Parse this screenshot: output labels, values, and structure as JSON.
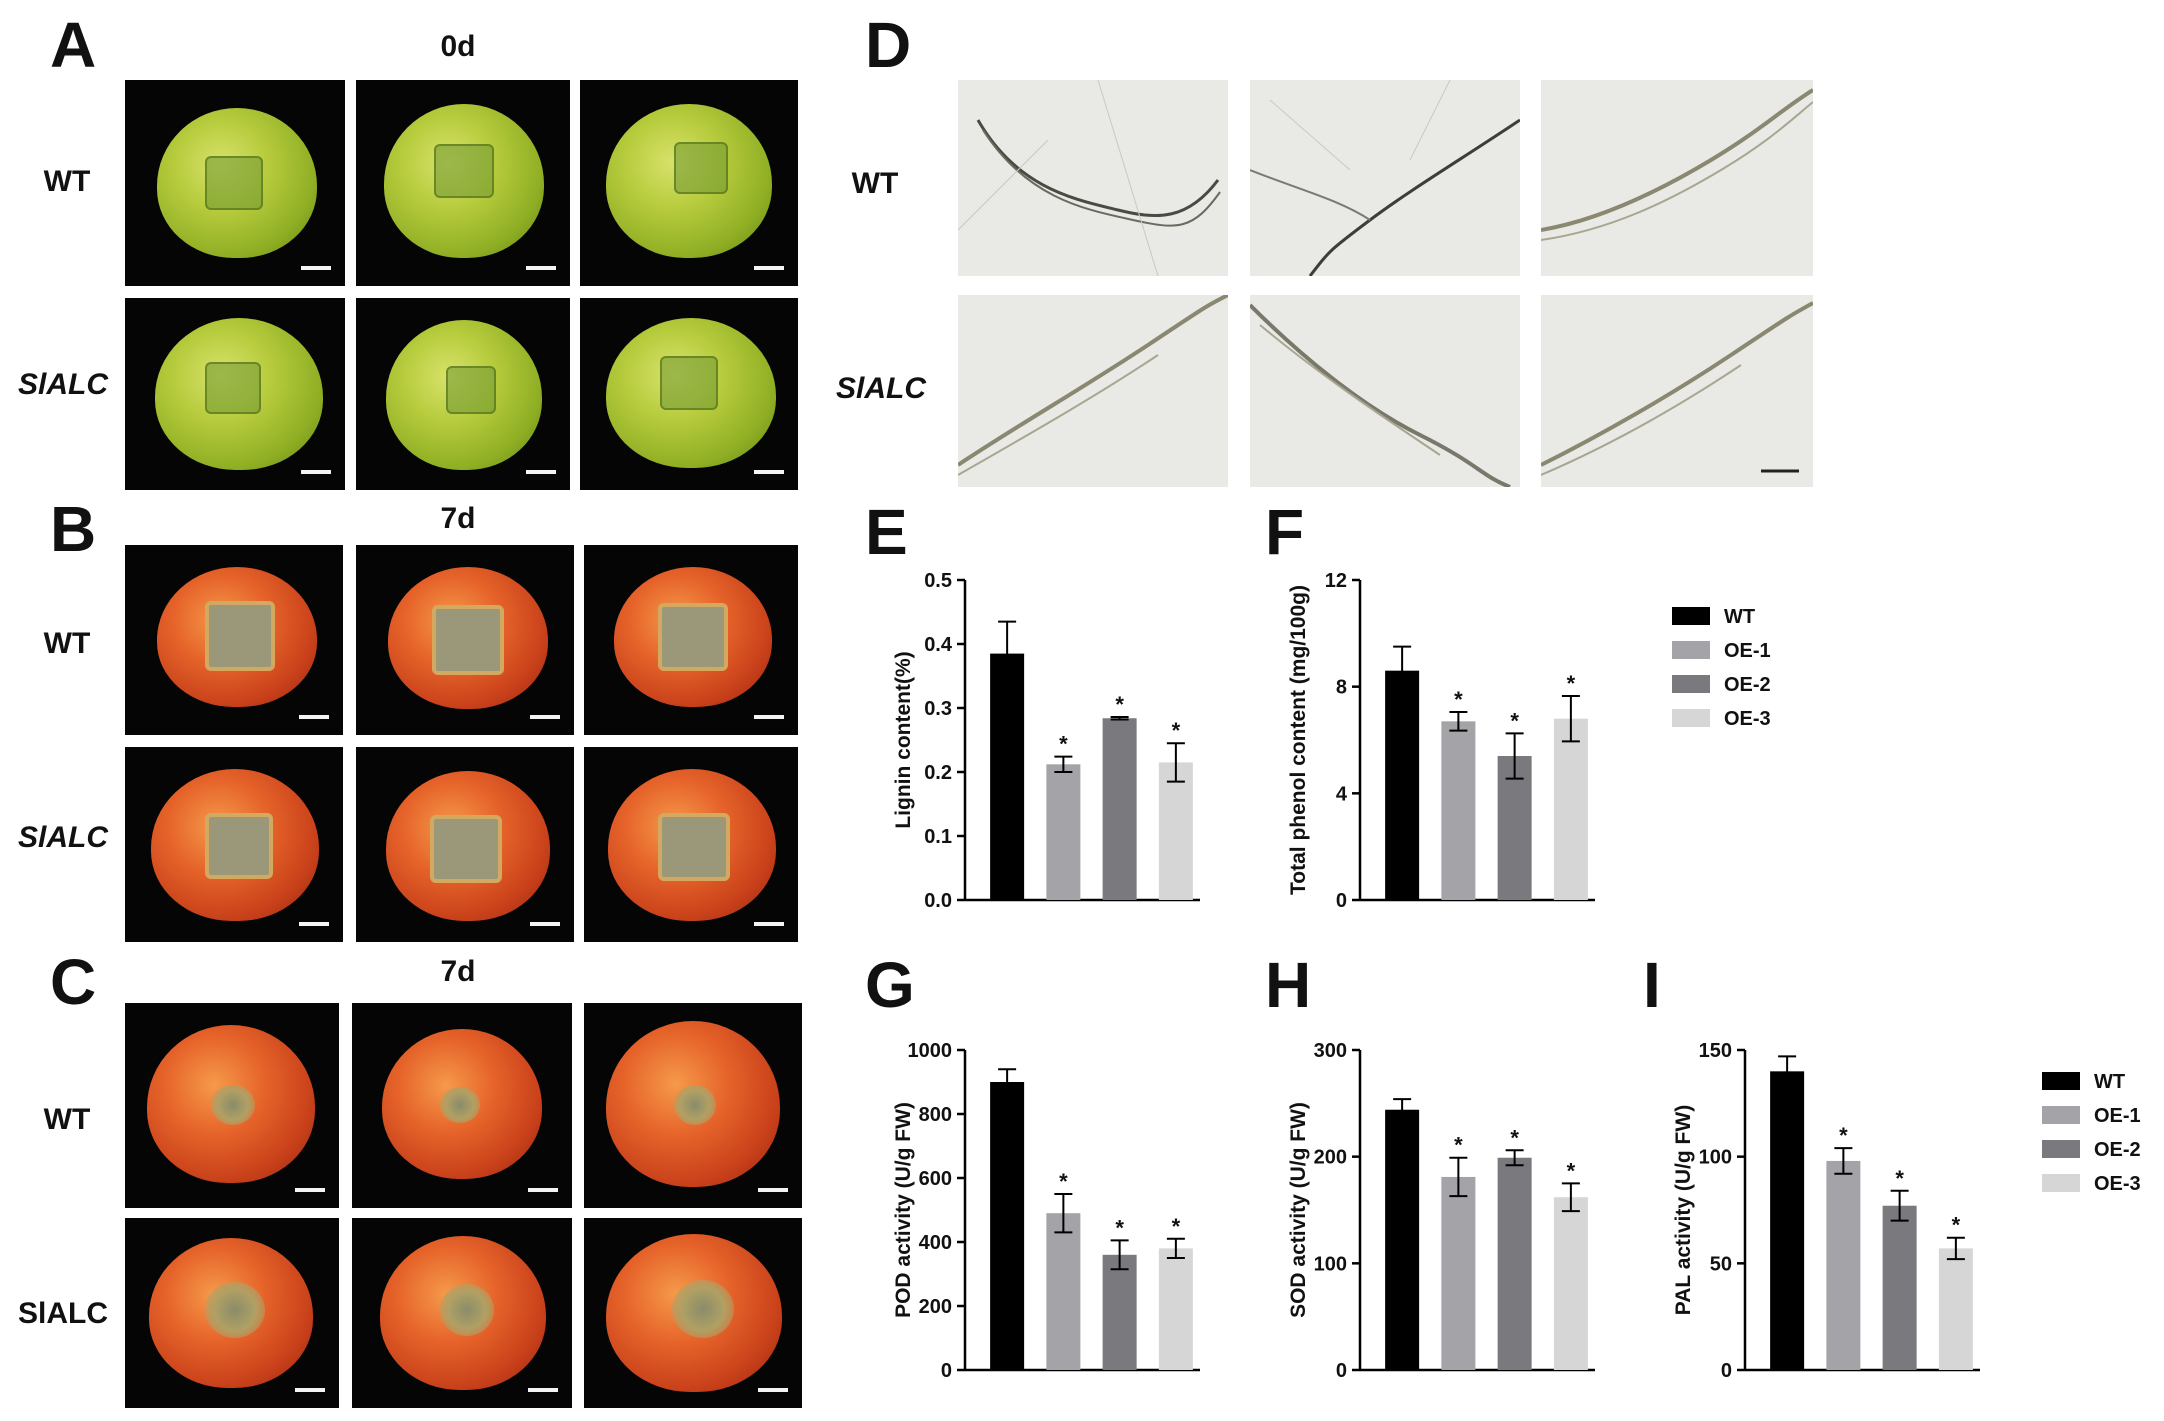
{
  "panels": {
    "A": {
      "letter": "A",
      "day": "0d",
      "rows": [
        "WT",
        "SlALC"
      ]
    },
    "B": {
      "letter": "B",
      "day": "7d",
      "rows": [
        "WT",
        "SlALC"
      ]
    },
    "C": {
      "letter": "C",
      "day": "7d",
      "rows": [
        "WT",
        "SlALC"
      ]
    },
    "D": {
      "letter": "D",
      "rows": [
        "WT",
        "SlALC"
      ]
    }
  },
  "legend_top": {
    "items": [
      {
        "label": "WT",
        "color": "#000000"
      },
      {
        "label": "OE-1",
        "color": "#a3a3a8"
      },
      {
        "label": "OE-2",
        "color": "#7a7a7e"
      },
      {
        "label": "OE-3",
        "color": "#d6d6d6"
      }
    ]
  },
  "legend_bottom": {
    "items": [
      {
        "label": "WT",
        "color": "#000000"
      },
      {
        "label": "OE-1",
        "color": "#a3a3a8"
      },
      {
        "label": "OE-2",
        "color": "#7a7a7e"
      },
      {
        "label": "OE-3",
        "color": "#d6d6d6"
      }
    ]
  },
  "chart_data": [
    {
      "panel": "E",
      "type": "bar",
      "categories": [
        "WT",
        "OE-1",
        "OE-2",
        "OE-3"
      ],
      "values": [
        0.385,
        0.212,
        0.284,
        0.215
      ],
      "errors": [
        0.05,
        0.012,
        0.002,
        0.03
      ],
      "significance": [
        "",
        "*",
        "*",
        "*"
      ],
      "ylabel": "Lignin content(%)",
      "ylim": [
        0,
        0.5
      ],
      "yticks": [
        "0.0",
        "0.1",
        "0.2",
        "0.3",
        "0.4",
        "0.5"
      ],
      "colors": [
        "#000000",
        "#a3a3a8",
        "#7a7a7e",
        "#d6d6d6"
      ]
    },
    {
      "panel": "F",
      "type": "bar",
      "categories": [
        "WT",
        "OE-1",
        "OE-2",
        "OE-3"
      ],
      "values": [
        8.6,
        6.7,
        5.4,
        6.8
      ],
      "errors": [
        0.9,
        0.35,
        0.85,
        0.85
      ],
      "significance": [
        "",
        "*",
        "*",
        "*"
      ],
      "ylabel": "Total phenol content (mg/100g)",
      "ylim": [
        0,
        12
      ],
      "yticks": [
        "0",
        "4",
        "8",
        "12"
      ],
      "colors": [
        "#000000",
        "#a3a3a8",
        "#7a7a7e",
        "#d6d6d6"
      ]
    },
    {
      "panel": "G",
      "type": "bar",
      "categories": [
        "WT",
        "OE-1",
        "OE-2",
        "OE-3"
      ],
      "values": [
        900,
        490,
        360,
        380
      ],
      "errors": [
        40,
        60,
        45,
        30
      ],
      "significance": [
        "",
        "*",
        "*",
        "*"
      ],
      "ylabel": "POD activity (U/g FW)",
      "ylim": [
        0,
        1000
      ],
      "yticks": [
        "0",
        "200",
        "400",
        "600",
        "800",
        "1000"
      ],
      "colors": [
        "#000000",
        "#a3a3a8",
        "#7a7a7e",
        "#d6d6d6"
      ]
    },
    {
      "panel": "H",
      "type": "bar",
      "categories": [
        "WT",
        "OE-1",
        "OE-2",
        "OE-3"
      ],
      "values": [
        244,
        181,
        199,
        162
      ],
      "errors": [
        10,
        18,
        7,
        13
      ],
      "significance": [
        "",
        "*",
        "*",
        "*"
      ],
      "ylabel": "SOD activity (U/g FW)",
      "ylim": [
        0,
        300
      ],
      "yticks": [
        "0",
        "100",
        "200",
        "300"
      ],
      "colors": [
        "#000000",
        "#a3a3a8",
        "#7a7a7e",
        "#d6d6d6"
      ]
    },
    {
      "panel": "I",
      "type": "bar",
      "categories": [
        "WT",
        "OE-1",
        "OE-2",
        "OE-3"
      ],
      "values": [
        140,
        98,
        77,
        57
      ],
      "errors": [
        7,
        6,
        7,
        5
      ],
      "significance": [
        "",
        "*",
        "*",
        "*"
      ],
      "ylabel": "PAL activity (U/g FW)",
      "ylim": [
        0,
        150
      ],
      "yticks": [
        "0",
        "50",
        "100",
        "150"
      ],
      "colors": [
        "#000000",
        "#a3a3a8",
        "#7a7a7e",
        "#d6d6d6"
      ]
    }
  ]
}
